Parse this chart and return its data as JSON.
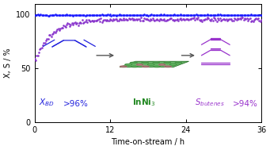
{
  "xlabel": "Time-on-stream / h",
  "ylabel": "X, S / %",
  "xlim": [
    0,
    36
  ],
  "ylim": [
    0,
    110
  ],
  "yticks": [
    0,
    50,
    100
  ],
  "xticks": [
    0,
    12,
    24,
    36
  ],
  "conversion_color": "#1a1aff",
  "selectivity_color": "#8833cc",
  "inni3_color": "#228822",
  "atom_green": "#66bb66",
  "atom_pink": "#bb8888",
  "slab_green": "#55aa55",
  "arrow_color": "#555555",
  "background_color": "#ffffff",
  "ann_blue": "#2222dd",
  "ann_purple": "#9933cc"
}
